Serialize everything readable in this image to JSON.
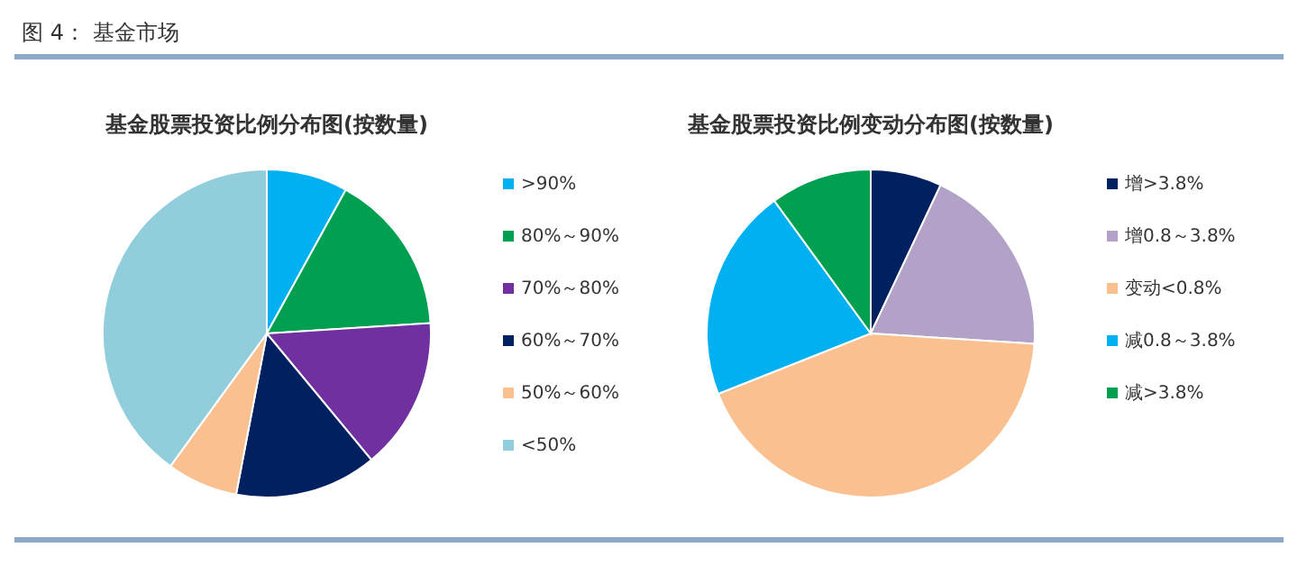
{
  "chart_data": [
    {
      "type": "pie",
      "title": "基金股票投资比例分布图(按数量)",
      "annotations": [
        "图 4：  基金市场"
      ],
      "categories": [
        ">90%",
        "80%～90%",
        "70%～80%",
        "60%～70%",
        "50%～60%",
        "<50%"
      ],
      "values": [
        8,
        16,
        15,
        14,
        7,
        40
      ],
      "colors": [
        "#00b0f0",
        "#00a050",
        "#7030a0",
        "#002060",
        "#fac090",
        "#92cddc"
      ],
      "legend": "right"
    },
    {
      "type": "pie",
      "title": "基金股票投资比例变动分布图(按数量)",
      "categories": [
        "增>3.8%",
        "增0.8～3.8%",
        "变动<0.8%",
        "减0.8～3.8%",
        "减>3.8%"
      ],
      "values": [
        7,
        19,
        43,
        21,
        10
      ],
      "colors": [
        "#002060",
        "#b2a2c7",
        "#fac090",
        "#00b0f0",
        "#00a050"
      ],
      "legend": "right"
    }
  ]
}
